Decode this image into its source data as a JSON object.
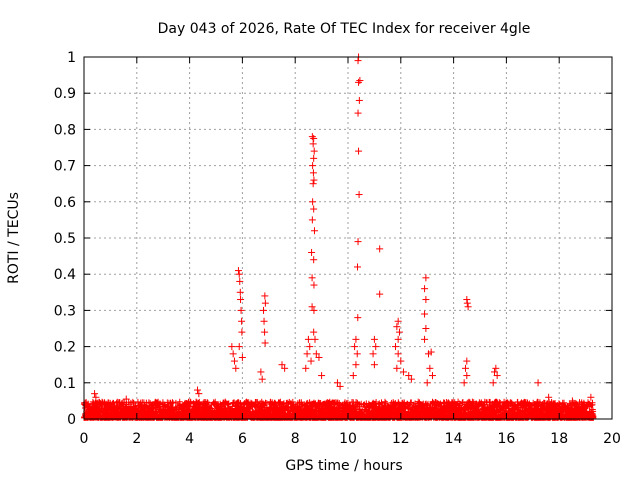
{
  "chart_data": {
    "type": "scatter",
    "title": "Day 043 of 2026, Rate Of TEC Index for receiver 4gle",
    "xlabel": "GPS time / hours",
    "ylabel": "ROTI / TECUs",
    "xlim": [
      0,
      20
    ],
    "ylim": [
      0,
      1
    ],
    "xticks": [
      "0",
      "2",
      "4",
      "6",
      "8",
      "10",
      "12",
      "14",
      "16",
      "18",
      "20"
    ],
    "yticks": [
      "0",
      "0.1",
      "0.2",
      "0.3",
      "0.4",
      "0.5",
      "0.6",
      "0.7",
      "0.8",
      "0.9",
      "1"
    ],
    "grid": true,
    "marker": "+",
    "series_color": "#ff0000",
    "data_end_hour": 19.3,
    "series": [
      {
        "name": "ROTI",
        "points": [
          [
            0.4,
            0.07
          ],
          [
            0.45,
            0.06
          ],
          [
            1.6,
            0.055
          ],
          [
            4.3,
            0.08
          ],
          [
            4.35,
            0.07
          ],
          [
            5.6,
            0.2
          ],
          [
            5.65,
            0.18
          ],
          [
            5.7,
            0.16
          ],
          [
            5.75,
            0.14
          ],
          [
            5.85,
            0.41
          ],
          [
            5.88,
            0.4
          ],
          [
            5.9,
            0.38
          ],
          [
            5.92,
            0.35
          ],
          [
            5.93,
            0.33
          ],
          [
            5.95,
            0.3
          ],
          [
            5.97,
            0.27
          ],
          [
            5.98,
            0.24
          ],
          [
            5.88,
            0.2
          ],
          [
            6.0,
            0.17
          ],
          [
            6.85,
            0.34
          ],
          [
            6.87,
            0.32
          ],
          [
            6.8,
            0.3
          ],
          [
            6.82,
            0.27
          ],
          [
            6.84,
            0.24
          ],
          [
            6.86,
            0.21
          ],
          [
            6.7,
            0.13
          ],
          [
            6.75,
            0.11
          ],
          [
            7.5,
            0.15
          ],
          [
            7.6,
            0.14
          ],
          [
            8.5,
            0.22
          ],
          [
            8.55,
            0.2
          ],
          [
            8.45,
            0.18
          ],
          [
            8.6,
            0.16
          ],
          [
            8.4,
            0.14
          ],
          [
            8.65,
            0.78
          ],
          [
            8.7,
            0.775
          ],
          [
            8.68,
            0.76
          ],
          [
            8.72,
            0.74
          ],
          [
            8.7,
            0.72
          ],
          [
            8.66,
            0.7
          ],
          [
            8.69,
            0.68
          ],
          [
            8.71,
            0.66
          ],
          [
            8.68,
            0.65
          ],
          [
            8.66,
            0.6
          ],
          [
            8.7,
            0.58
          ],
          [
            8.65,
            0.55
          ],
          [
            8.73,
            0.52
          ],
          [
            8.62,
            0.46
          ],
          [
            8.7,
            0.44
          ],
          [
            8.64,
            0.39
          ],
          [
            8.71,
            0.37
          ],
          [
            8.64,
            0.31
          ],
          [
            8.71,
            0.3
          ],
          [
            8.7,
            0.24
          ],
          [
            8.75,
            0.22
          ],
          [
            8.8,
            0.18
          ],
          [
            8.9,
            0.17
          ],
          [
            9.0,
            0.12
          ],
          [
            9.6,
            0.1
          ],
          [
            9.7,
            0.09
          ],
          [
            10.4,
            1.0
          ],
          [
            10.38,
            0.99
          ],
          [
            10.45,
            0.935
          ],
          [
            10.4,
            0.93
          ],
          [
            10.43,
            0.88
          ],
          [
            10.38,
            0.845
          ],
          [
            10.4,
            0.74
          ],
          [
            10.42,
            0.62
          ],
          [
            10.38,
            0.49
          ],
          [
            10.36,
            0.42
          ],
          [
            10.37,
            0.28
          ],
          [
            10.3,
            0.22
          ],
          [
            10.25,
            0.2
          ],
          [
            10.35,
            0.18
          ],
          [
            10.3,
            0.15
          ],
          [
            10.2,
            0.12
          ],
          [
            11.0,
            0.22
          ],
          [
            11.05,
            0.2
          ],
          [
            10.95,
            0.18
          ],
          [
            11.0,
            0.15
          ],
          [
            11.2,
            0.47
          ],
          [
            11.2,
            0.345
          ],
          [
            11.9,
            0.27
          ],
          [
            11.85,
            0.255
          ],
          [
            11.95,
            0.24
          ],
          [
            11.9,
            0.22
          ],
          [
            11.8,
            0.2
          ],
          [
            11.9,
            0.18
          ],
          [
            12.0,
            0.16
          ],
          [
            11.85,
            0.14
          ],
          [
            12.1,
            0.13
          ],
          [
            12.3,
            0.12
          ],
          [
            12.4,
            0.11
          ],
          [
            12.95,
            0.39
          ],
          [
            12.9,
            0.36
          ],
          [
            12.95,
            0.33
          ],
          [
            12.9,
            0.29
          ],
          [
            12.95,
            0.25
          ],
          [
            12.9,
            0.22
          ],
          [
            13.05,
            0.18
          ],
          [
            13.15,
            0.185
          ],
          [
            13.1,
            0.14
          ],
          [
            13.2,
            0.12
          ],
          [
            13.0,
            0.1
          ],
          [
            14.5,
            0.33
          ],
          [
            14.52,
            0.32
          ],
          [
            14.55,
            0.31
          ],
          [
            14.5,
            0.16
          ],
          [
            14.45,
            0.14
          ],
          [
            14.5,
            0.12
          ],
          [
            14.4,
            0.1
          ],
          [
            15.6,
            0.14
          ],
          [
            15.55,
            0.13
          ],
          [
            15.65,
            0.12
          ],
          [
            15.5,
            0.1
          ],
          [
            17.2,
            0.1
          ],
          [
            17.6,
            0.06
          ],
          [
            18.5,
            0.05
          ],
          [
            19.2,
            0.06
          ]
        ]
      }
    ]
  }
}
